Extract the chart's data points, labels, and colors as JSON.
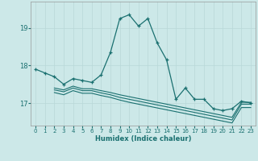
{
  "xlabel": "Humidex (Indice chaleur)",
  "background_color": "#cce8e8",
  "grid_color": "#b8d8d8",
  "line_color": "#1a7070",
  "xlim": [
    -0.5,
    23.5
  ],
  "ylim": [
    16.4,
    19.7
  ],
  "yticks": [
    17,
    18,
    19
  ],
  "xticks": [
    0,
    1,
    2,
    3,
    4,
    5,
    6,
    7,
    8,
    9,
    10,
    11,
    12,
    13,
    14,
    15,
    16,
    17,
    18,
    19,
    20,
    21,
    22,
    23
  ],
  "main_line_x": [
    0,
    1,
    2,
    3,
    4,
    5,
    6,
    7,
    8,
    9,
    10,
    11,
    12,
    13,
    14,
    15,
    16,
    17,
    18,
    19,
    20,
    21,
    22,
    23
  ],
  "main_line_y": [
    17.9,
    17.8,
    17.7,
    17.5,
    17.65,
    17.6,
    17.55,
    17.75,
    18.35,
    19.25,
    19.35,
    19.05,
    19.25,
    18.6,
    18.15,
    17.1,
    17.4,
    17.1,
    17.1,
    16.85,
    16.8,
    16.85,
    17.05,
    17.0
  ],
  "line2_x": [
    2,
    3,
    4,
    5,
    6,
    7,
    8,
    9,
    10,
    11,
    12,
    13,
    14,
    15,
    16,
    17,
    18,
    19,
    20,
    21,
    22,
    23
  ],
  "line2_y": [
    17.4,
    17.35,
    17.45,
    17.38,
    17.38,
    17.33,
    17.28,
    17.22,
    17.17,
    17.12,
    17.07,
    17.02,
    16.97,
    16.92,
    16.87,
    16.82,
    16.77,
    16.72,
    16.67,
    16.62,
    17.02,
    17.02
  ],
  "line3_x": [
    2,
    3,
    4,
    5,
    6,
    7,
    8,
    9,
    10,
    11,
    12,
    13,
    14,
    15,
    16,
    17,
    18,
    19,
    20,
    21,
    22,
    23
  ],
  "line3_y": [
    17.35,
    17.3,
    17.4,
    17.33,
    17.33,
    17.27,
    17.22,
    17.15,
    17.1,
    17.05,
    17.0,
    16.95,
    16.9,
    16.85,
    16.8,
    16.75,
    16.7,
    16.65,
    16.6,
    16.55,
    16.97,
    16.97
  ],
  "line4_x": [
    2,
    3,
    4,
    5,
    6,
    7,
    8,
    9,
    10,
    11,
    12,
    13,
    14,
    15,
    16,
    17,
    18,
    19,
    20,
    21,
    22,
    23
  ],
  "line4_y": [
    17.28,
    17.22,
    17.33,
    17.26,
    17.26,
    17.2,
    17.15,
    17.08,
    17.02,
    16.97,
    16.92,
    16.87,
    16.82,
    16.77,
    16.72,
    16.67,
    16.62,
    16.57,
    16.52,
    16.47,
    16.88,
    16.88
  ]
}
